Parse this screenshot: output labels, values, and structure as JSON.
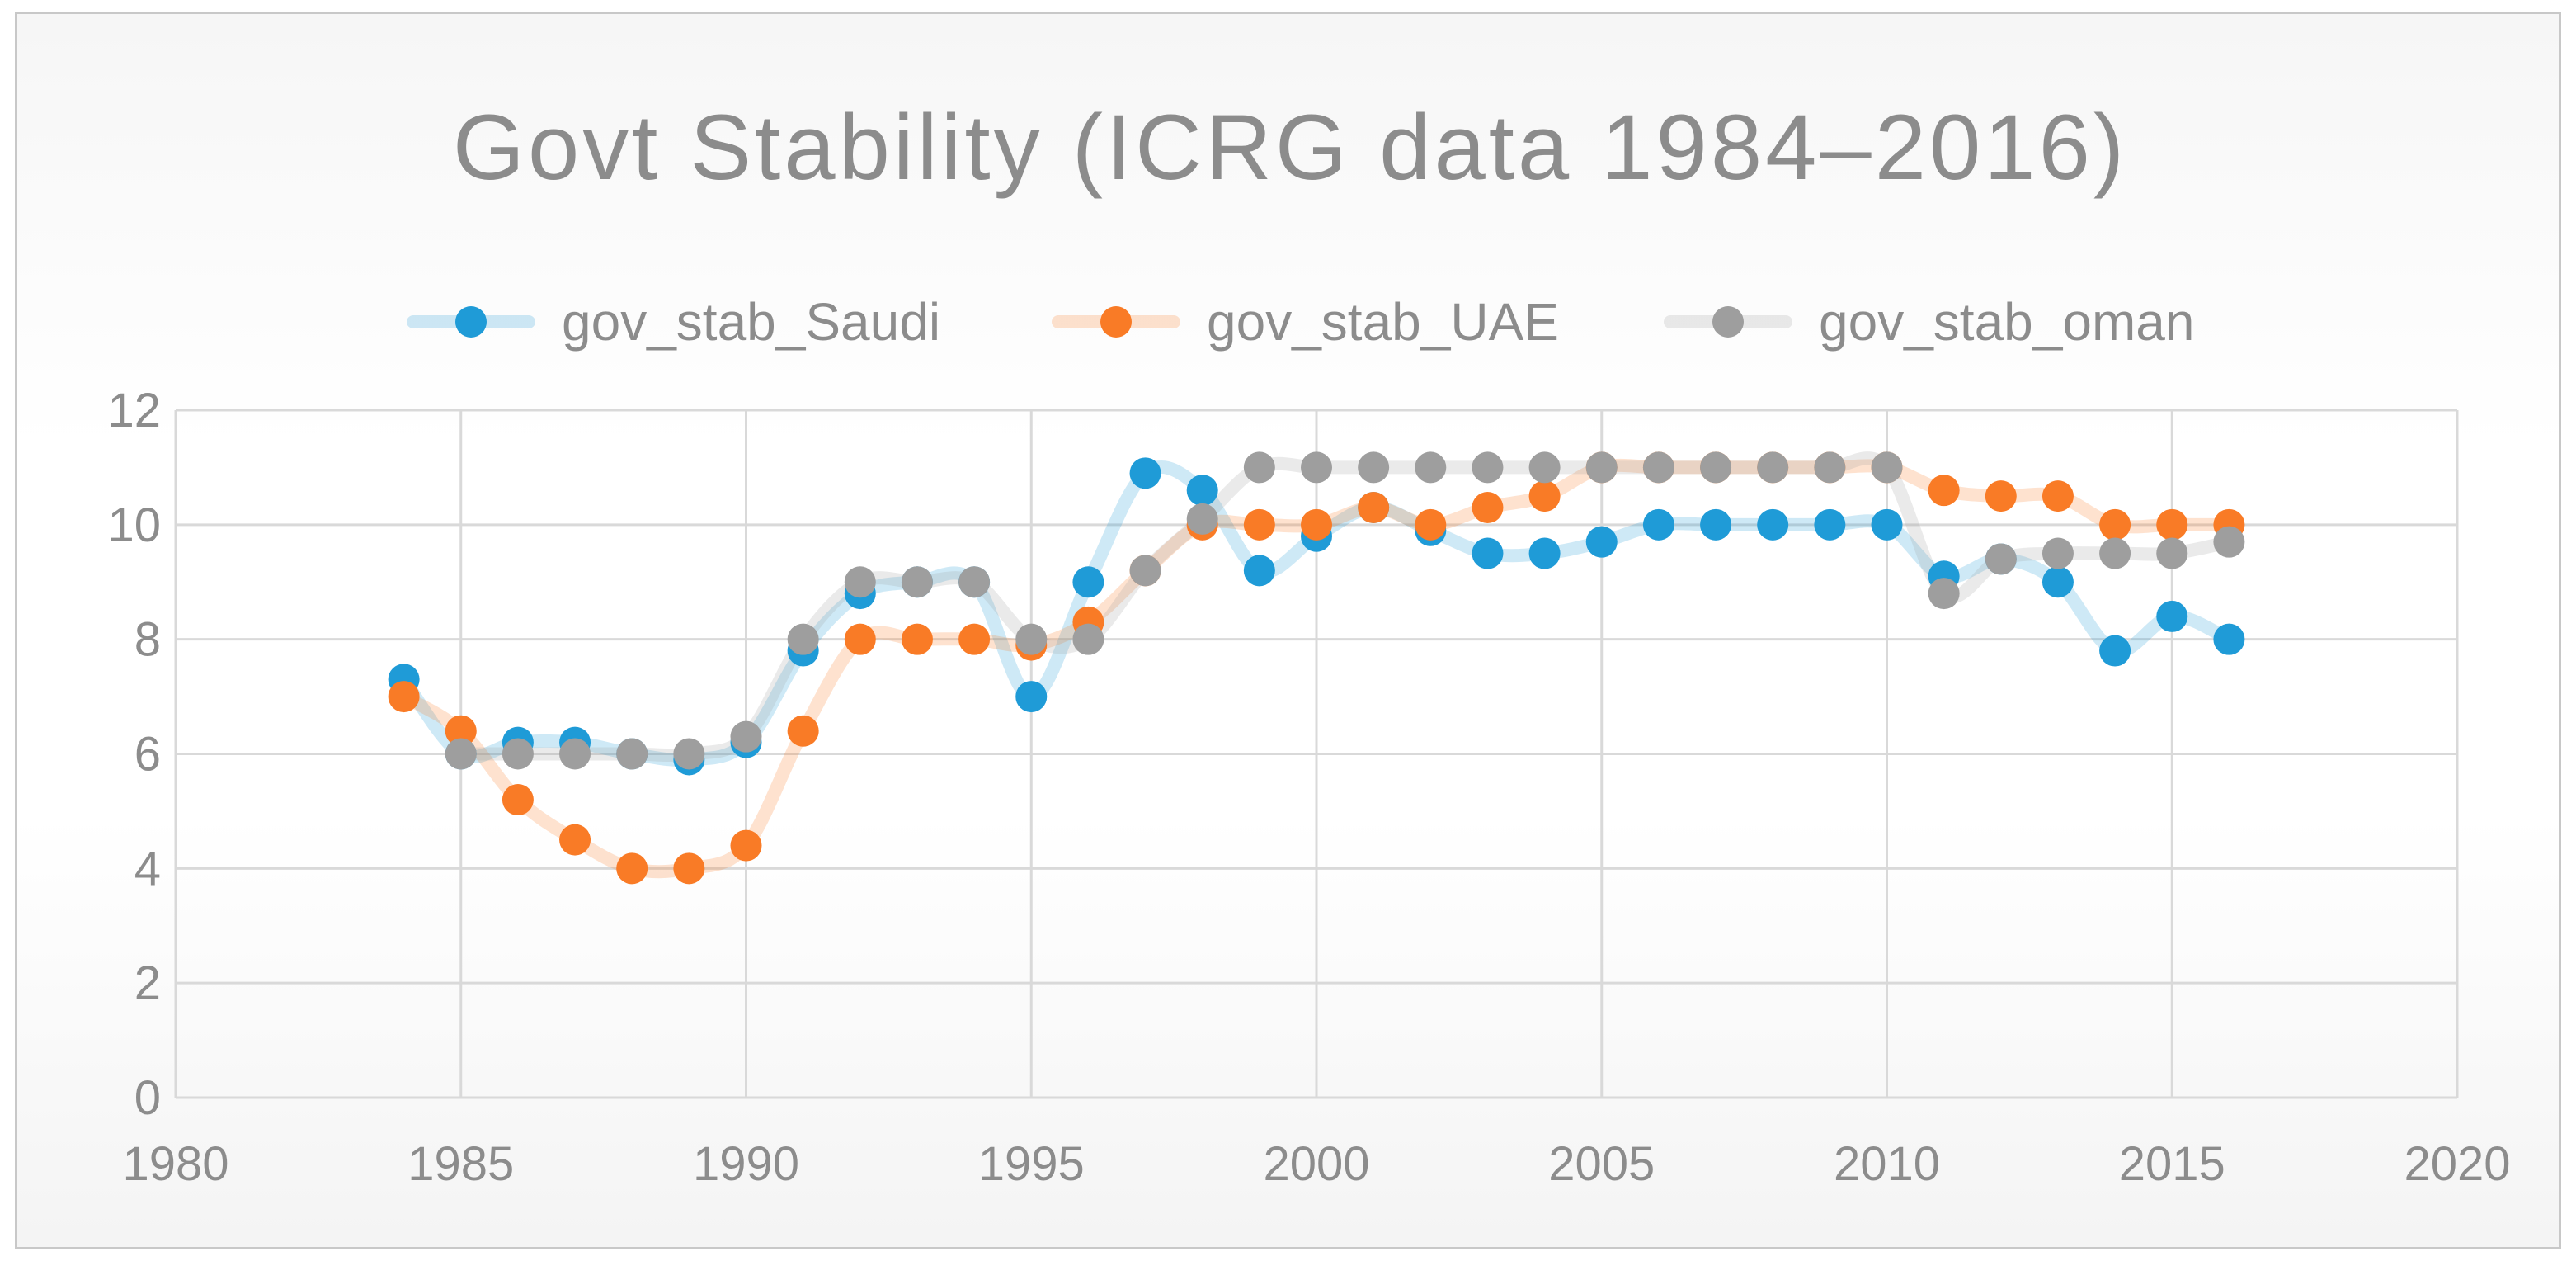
{
  "chart_data": {
    "type": "scatter",
    "title": "Govt Stability (ICRG data 1984–2016)",
    "xlabel": "",
    "ylabel": "",
    "xlim": [
      1980,
      2020
    ],
    "ylim": [
      0,
      12
    ],
    "xticks": [
      1980,
      1985,
      1990,
      1995,
      2000,
      2005,
      2010,
      2015,
      2020
    ],
    "yticks": [
      0,
      2,
      4,
      6,
      8,
      10,
      12
    ],
    "grid": true,
    "legend_position": "top",
    "x": [
      1984,
      1985,
      1986,
      1987,
      1988,
      1989,
      1990,
      1991,
      1992,
      1993,
      1994,
      1995,
      1996,
      1997,
      1998,
      1999,
      2000,
      2001,
      2002,
      2003,
      2004,
      2005,
      2006,
      2007,
      2008,
      2009,
      2010,
      2011,
      2012,
      2013,
      2014,
      2015,
      2016
    ],
    "series": [
      {
        "name": "gov_stab_Saudi",
        "color": "#1f9bd7",
        "values": [
          7.3,
          6.0,
          6.2,
          6.2,
          6.0,
          5.9,
          6.2,
          7.8,
          8.8,
          9.0,
          9.0,
          7.0,
          9.0,
          10.9,
          10.6,
          9.2,
          9.8,
          10.3,
          9.9,
          9.5,
          9.5,
          9.7,
          10.0,
          10.0,
          10.0,
          10.0,
          10.0,
          9.1,
          9.4,
          9.0,
          7.8,
          8.4,
          8.0
        ]
      },
      {
        "name": "gov_stab_UAE",
        "color": "#f97b26",
        "values": [
          7.0,
          6.4,
          5.2,
          4.5,
          4.0,
          4.0,
          4.4,
          6.4,
          8.0,
          8.0,
          8.0,
          7.9,
          8.3,
          9.2,
          10.0,
          10.0,
          10.0,
          10.3,
          10.0,
          10.3,
          10.5,
          11.0,
          11.0,
          11.0,
          11.0,
          11.0,
          11.0,
          10.6,
          10.5,
          10.5,
          10.0,
          10.0,
          10.0
        ]
      },
      {
        "name": "gov_stab_oman",
        "color": "#9e9e9e",
        "values": [
          null,
          6.0,
          6.0,
          6.0,
          6.0,
          6.0,
          6.3,
          8.0,
          9.0,
          9.0,
          9.0,
          8.0,
          8.0,
          9.2,
          10.1,
          11.0,
          11.0,
          11.0,
          11.0,
          11.0,
          11.0,
          11.0,
          11.0,
          11.0,
          11.0,
          11.0,
          11.0,
          8.8,
          9.4,
          9.5,
          9.5,
          9.5,
          9.7
        ]
      }
    ]
  }
}
